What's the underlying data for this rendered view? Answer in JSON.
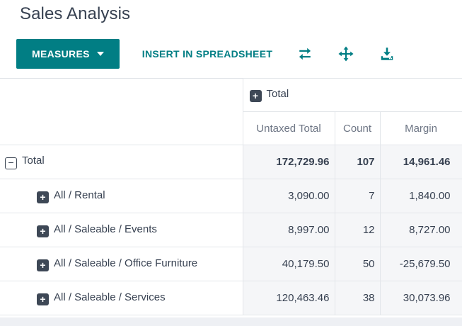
{
  "page_title": "Sales Analysis",
  "toolbar": {
    "measures_label": "MEASURES",
    "insert_spreadsheet_label": "INSERT IN SPREADSHEET",
    "icons": [
      "flip-axis-icon",
      "expand-all-icon",
      "download-icon"
    ]
  },
  "colors": {
    "accent": "#017e84",
    "text_dark": "#374151",
    "header_gray": "#6d7584",
    "cell_bg": "#f5f6f8",
    "border": "#e3e6ea",
    "icon_square": "#3e4856"
  },
  "table": {
    "column_group_label": "Total",
    "column_group_icon": "plus-icon",
    "measures": [
      "Untaxed Total",
      "Count",
      "Margin"
    ],
    "rows": [
      {
        "label": "Total",
        "icon": "minus",
        "level": 0,
        "bold": true,
        "values": [
          "172,729.96",
          "107",
          "14,961.46"
        ]
      },
      {
        "label": "All / Rental",
        "icon": "plus",
        "level": 1,
        "bold": false,
        "values": [
          "3,090.00",
          "7",
          "1,840.00"
        ]
      },
      {
        "label": "All / Saleable / Events",
        "icon": "plus",
        "level": 1,
        "bold": false,
        "values": [
          "8,997.00",
          "12",
          "8,727.00"
        ]
      },
      {
        "label": "All / Saleable / Office Furniture",
        "icon": "plus",
        "level": 1,
        "bold": false,
        "values": [
          "40,179.50",
          "50",
          "-25,679.50"
        ]
      },
      {
        "label": "All / Saleable / Services",
        "icon": "plus",
        "level": 1,
        "bold": false,
        "values": [
          "120,463.46",
          "38",
          "30,073.96"
        ]
      }
    ]
  }
}
